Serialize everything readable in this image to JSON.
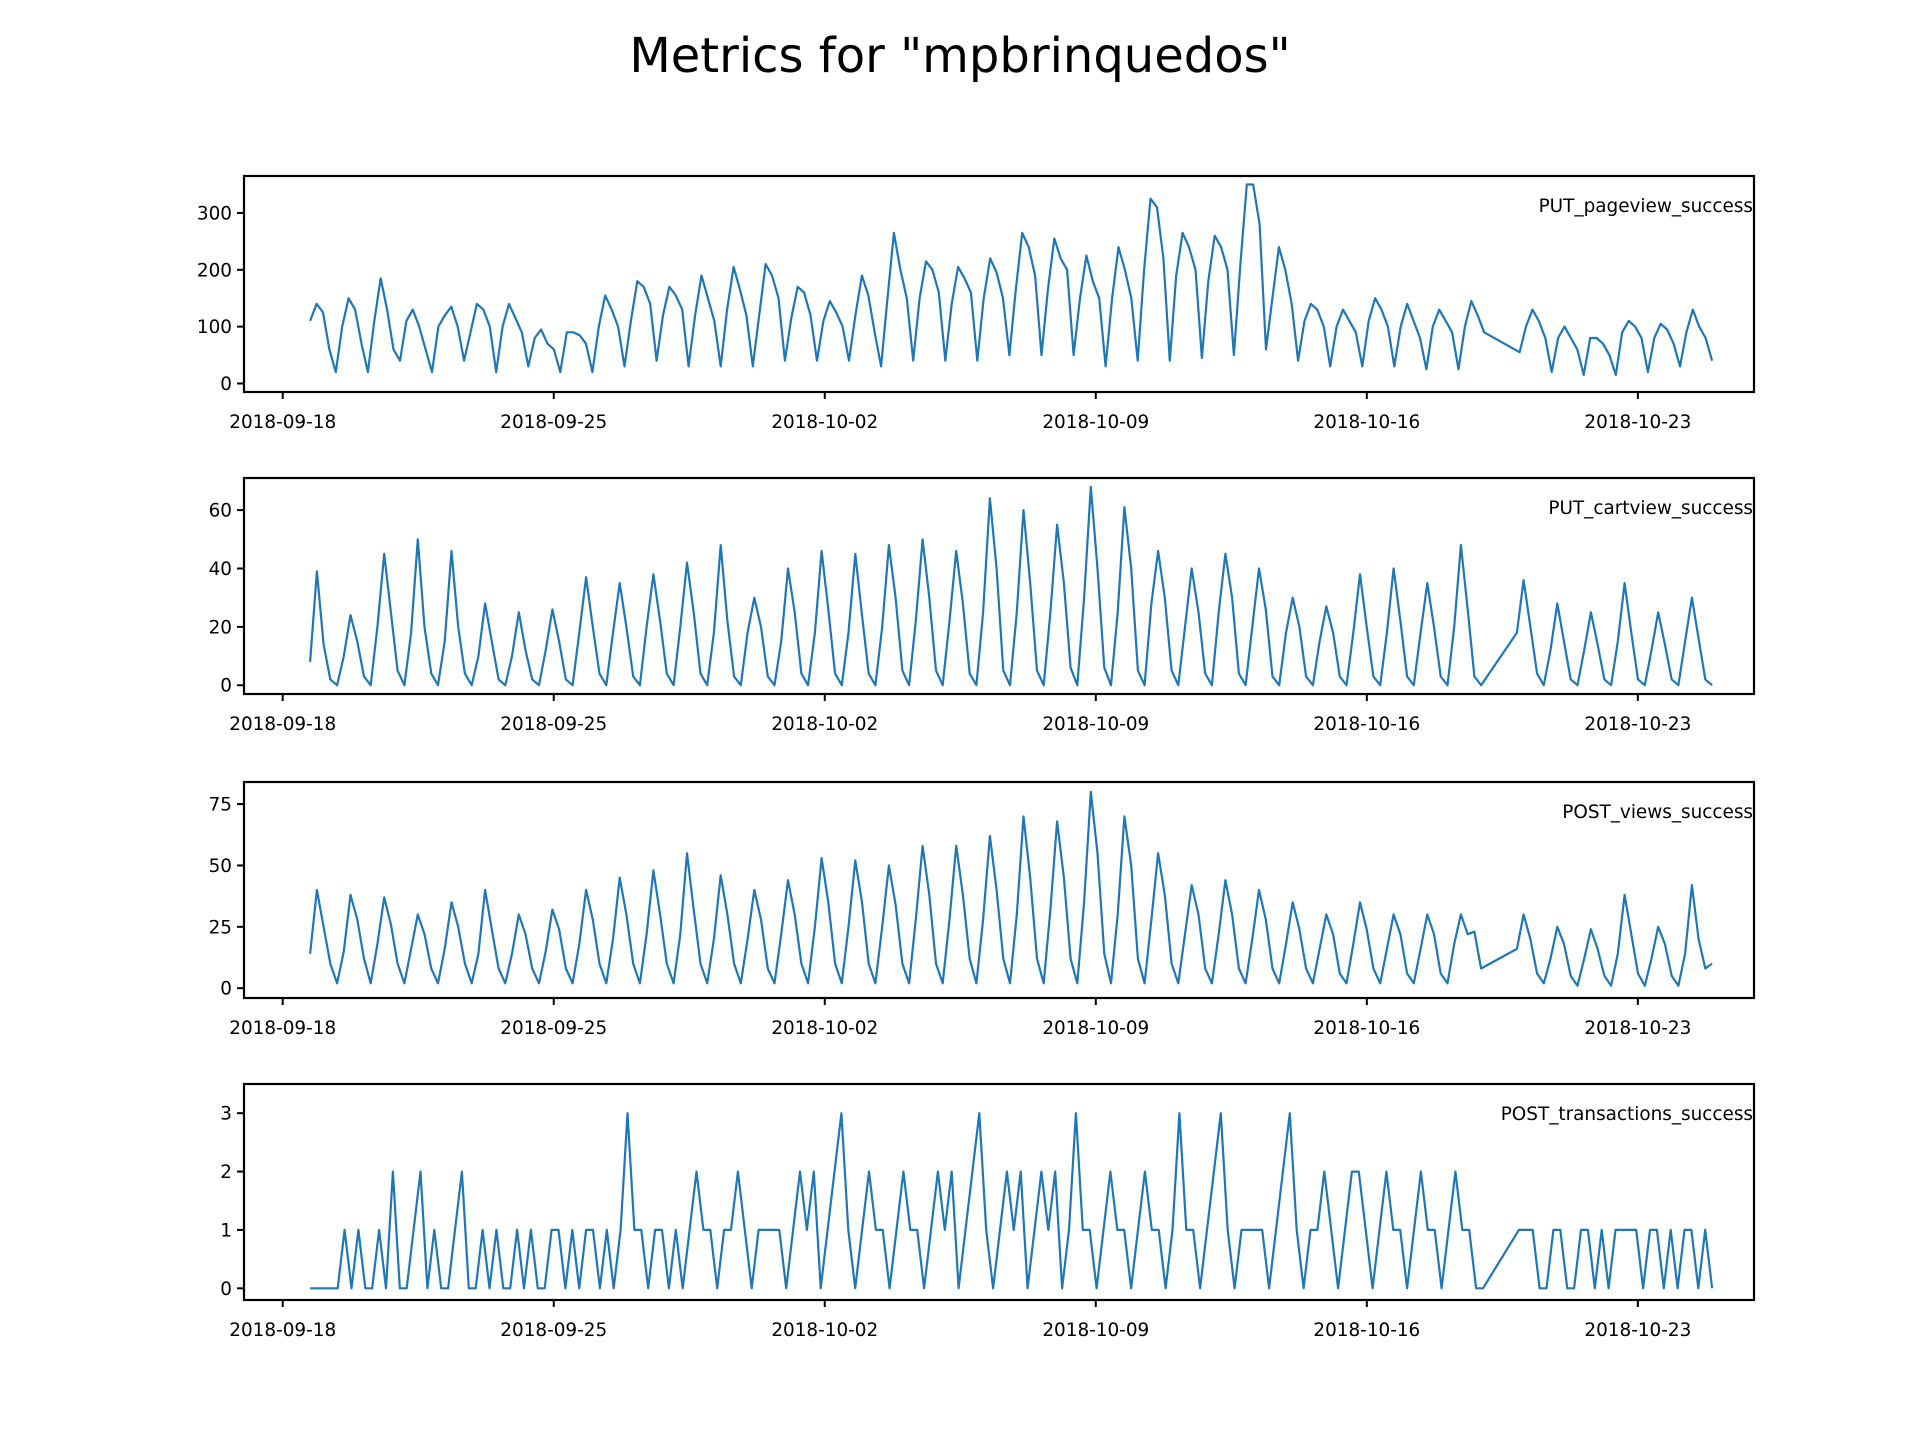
{
  "figure_title": "Metrics for \"mpbrinquedos\"",
  "colors": {
    "series": "#1f77b4"
  },
  "x_ticks": [
    "2018-09-18",
    "2018-09-25",
    "2018-10-02",
    "2018-10-09",
    "2018-10-16",
    "2018-10-23"
  ],
  "chart_data": [
    {
      "type": "line",
      "label": "PUT_pageview_success",
      "x_range": [
        "2018-09-17",
        "2018-10-26"
      ],
      "ylim": [
        -15,
        365
      ],
      "yticks": [
        0,
        100,
        200,
        300
      ],
      "grid": false,
      "x_start": "2018-09-18T17:00",
      "x_end": "2018-10-24T22:00",
      "gap": {
        "from": "2018-10-19T02:00",
        "to": "2018-10-19T20:00"
      },
      "series": [
        {
          "values": [
            110,
            140,
            125,
            60,
            20,
            100,
            150,
            130,
            70,
            20,
            110,
            185,
            130,
            60,
            40,
            110,
            130,
            100,
            60,
            20,
            100,
            120,
            135,
            100,
            40,
            90,
            140,
            130,
            100,
            20,
            100,
            140,
            115,
            90,
            30,
            80,
            95,
            70,
            60,
            20,
            90,
            90,
            85,
            70,
            20,
            100,
            155,
            130,
            100,
            30,
            110,
            180,
            170,
            140,
            40,
            120,
            170,
            155,
            130,
            30,
            120,
            190,
            150,
            110,
            30,
            130,
            205,
            165,
            120,
            30,
            120,
            210,
            190,
            150,
            40,
            115,
            170,
            160,
            120,
            40,
            110,
            145,
            125,
            100,
            40,
            120,
            190,
            155,
            90,
            30,
            150,
            265,
            200,
            150,
            40,
            150,
            215,
            200,
            160,
            40,
            140,
            205,
            185,
            160,
            40,
            150,
            220,
            195,
            150,
            50,
            165,
            265,
            240,
            190,
            50,
            165,
            255,
            220,
            200,
            50,
            150,
            225,
            180,
            150,
            30,
            150,
            240,
            200,
            150,
            40,
            200,
            325,
            310,
            220,
            40,
            190,
            265,
            240,
            200,
            45,
            180,
            260,
            240,
            200,
            50,
            210,
            350,
            350,
            280,
            60,
            150,
            240,
            200,
            140,
            40,
            110,
            140,
            130,
            100,
            30,
            100,
            130,
            110,
            90,
            30,
            110,
            150,
            130,
            100,
            30,
            100,
            140,
            110,
            80,
            25,
            100,
            130,
            110,
            90,
            25,
            100,
            145,
            120,
            90,
            55,
            100,
            130,
            110,
            80,
            20,
            80,
            100,
            80,
            60,
            15,
            80,
            80,
            70,
            50,
            15,
            90,
            110,
            100,
            80,
            20,
            80,
            105,
            95,
            70,
            30,
            90,
            130,
            100,
            80,
            40
          ]
        }
      ]
    },
    {
      "type": "line",
      "label": "PUT_cartview_success",
      "x_range": [
        "2018-09-17",
        "2018-10-26"
      ],
      "ylim": [
        -3,
        71
      ],
      "yticks": [
        0,
        20,
        40,
        60
      ],
      "grid": false,
      "x_start": "2018-09-18T17:00",
      "x_end": "2018-10-24T22:00",
      "gap": {
        "from": "2018-10-19T02:00",
        "to": "2018-10-19T20:00"
      },
      "series": [
        {
          "values": [
            8,
            39,
            14,
            2,
            0,
            10,
            24,
            15,
            3,
            0,
            20,
            45,
            25,
            5,
            0,
            18,
            50,
            20,
            4,
            0,
            15,
            46,
            20,
            4,
            0,
            10,
            28,
            15,
            2,
            0,
            10,
            25,
            12,
            2,
            0,
            12,
            26,
            15,
            2,
            0,
            18,
            37,
            20,
            4,
            0,
            18,
            35,
            20,
            3,
            0,
            20,
            38,
            22,
            4,
            0,
            20,
            42,
            25,
            4,
            0,
            18,
            48,
            22,
            3,
            0,
            18,
            30,
            20,
            3,
            0,
            15,
            40,
            25,
            4,
            0,
            18,
            46,
            26,
            4,
            0,
            18,
            45,
            24,
            4,
            0,
            20,
            48,
            30,
            5,
            0,
            22,
            50,
            30,
            5,
            0,
            22,
            46,
            28,
            4,
            0,
            25,
            64,
            40,
            5,
            0,
            25,
            60,
            35,
            5,
            0,
            25,
            55,
            35,
            6,
            0,
            30,
            68,
            40,
            6,
            0,
            25,
            61,
            40,
            5,
            0,
            28,
            46,
            30,
            5,
            0,
            20,
            40,
            25,
            4,
            0,
            25,
            45,
            30,
            4,
            0,
            20,
            40,
            26,
            3,
            0,
            18,
            30,
            20,
            3,
            0,
            15,
            27,
            18,
            3,
            0,
            18,
            38,
            20,
            3,
            0,
            18,
            40,
            22,
            3,
            0,
            18,
            35,
            20,
            3,
            0,
            20,
            48,
            26,
            3,
            0,
            18,
            36,
            20,
            4,
            0,
            12,
            28,
            15,
            2,
            0,
            12,
            25,
            14,
            2,
            0,
            15,
            35,
            18,
            2,
            0,
            12,
            25,
            14,
            2,
            0,
            15,
            30,
            16,
            2,
            0
          ]
        }
      ]
    },
    {
      "type": "line",
      "label": "POST_views_success",
      "x_range": [
        "2018-09-17",
        "2018-10-26"
      ],
      "ylim": [
        -4,
        84
      ],
      "yticks": [
        0,
        25,
        50,
        75
      ],
      "grid": false,
      "x_start": "2018-09-18T17:00",
      "x_end": "2018-10-24T22:00",
      "gap": {
        "from": "2018-10-19T02:00",
        "to": "2018-10-19T20:00"
      },
      "series": [
        {
          "values": [
            14,
            40,
            25,
            10,
            2,
            15,
            38,
            28,
            12,
            2,
            18,
            37,
            26,
            10,
            2,
            16,
            30,
            22,
            8,
            2,
            16,
            35,
            25,
            10,
            2,
            14,
            40,
            24,
            8,
            2,
            14,
            30,
            22,
            8,
            2,
            15,
            32,
            24,
            8,
            2,
            18,
            40,
            28,
            10,
            2,
            20,
            45,
            30,
            10,
            2,
            22,
            48,
            30,
            10,
            2,
            22,
            55,
            32,
            10,
            2,
            20,
            46,
            30,
            10,
            2,
            20,
            40,
            28,
            8,
            2,
            22,
            44,
            30,
            10,
            2,
            25,
            53,
            35,
            10,
            2,
            25,
            52,
            35,
            10,
            2,
            25,
            50,
            34,
            10,
            2,
            28,
            58,
            38,
            10,
            2,
            28,
            58,
            38,
            12,
            2,
            28,
            62,
            40,
            12,
            2,
            30,
            70,
            45,
            12,
            2,
            32,
            68,
            45,
            12,
            2,
            35,
            80,
            55,
            14,
            2,
            30,
            70,
            50,
            12,
            2,
            28,
            55,
            38,
            10,
            2,
            22,
            42,
            30,
            8,
            2,
            22,
            44,
            30,
            8,
            2,
            20,
            40,
            28,
            8,
            2,
            18,
            35,
            24,
            8,
            2,
            16,
            30,
            22,
            6,
            2,
            18,
            35,
            24,
            8,
            2,
            16,
            30,
            22,
            6,
            2,
            16,
            30,
            22,
            6,
            2,
            18,
            30,
            22,
            23,
            8,
            16,
            30,
            20,
            6,
            2,
            12,
            25,
            18,
            5,
            1,
            12,
            24,
            16,
            5,
            1,
            14,
            38,
            22,
            6,
            1,
            12,
            25,
            18,
            5,
            1,
            14,
            42,
            20,
            8,
            10
          ]
        }
      ]
    },
    {
      "type": "line",
      "label": "POST_transactions_success",
      "x_range": [
        "2018-09-17",
        "2018-10-26"
      ],
      "ylim": [
        -0.2,
        3.5
      ],
      "yticks": [
        0,
        1,
        2,
        3
      ],
      "grid": false,
      "x_start": "2018-09-18T17:00",
      "x_end": "2018-10-24T22:00",
      "gap": {
        "from": "2018-10-19T02:00",
        "to": "2018-10-19T20:00"
      },
      "series": [
        {
          "values": [
            0,
            0,
            0,
            0,
            0,
            1,
            0,
            1,
            0,
            0,
            1,
            0,
            2,
            0,
            0,
            1,
            2,
            0,
            1,
            0,
            0,
            1,
            2,
            0,
            0,
            1,
            0,
            1,
            0,
            0,
            1,
            0,
            1,
            0,
            0,
            1,
            1,
            0,
            1,
            0,
            1,
            1,
            0,
            1,
            0,
            1,
            3,
            1,
            1,
            0,
            1,
            1,
            0,
            1,
            0,
            1,
            2,
            1,
            1,
            0,
            1,
            1,
            2,
            1,
            0,
            1,
            1,
            1,
            1,
            0,
            1,
            2,
            1,
            2,
            0,
            1,
            2,
            3,
            1,
            0,
            1,
            2,
            1,
            1,
            0,
            1,
            2,
            1,
            1,
            0,
            1,
            2,
            1,
            2,
            0,
            1,
            2,
            3,
            1,
            0,
            1,
            2,
            1,
            2,
            0,
            1,
            2,
            1,
            2,
            0,
            1,
            3,
            1,
            1,
            0,
            1,
            2,
            1,
            1,
            0,
            1,
            2,
            1,
            1,
            0,
            1,
            3,
            1,
            1,
            0,
            1,
            2,
            3,
            1,
            0,
            1,
            1,
            1,
            1,
            0,
            1,
            2,
            3,
            1,
            0,
            1,
            1,
            2,
            1,
            0,
            1,
            2,
            2,
            1,
            0,
            1,
            2,
            1,
            1,
            0,
            1,
            2,
            1,
            1,
            0,
            1,
            2,
            1,
            1,
            0,
            0,
            1,
            1,
            1,
            0,
            0,
            1,
            1,
            0,
            0,
            1,
            1,
            0,
            1,
            0,
            1,
            1,
            1,
            1,
            0,
            1,
            1,
            0,
            1,
            0,
            1,
            1,
            0,
            1,
            0
          ]
        }
      ]
    }
  ]
}
